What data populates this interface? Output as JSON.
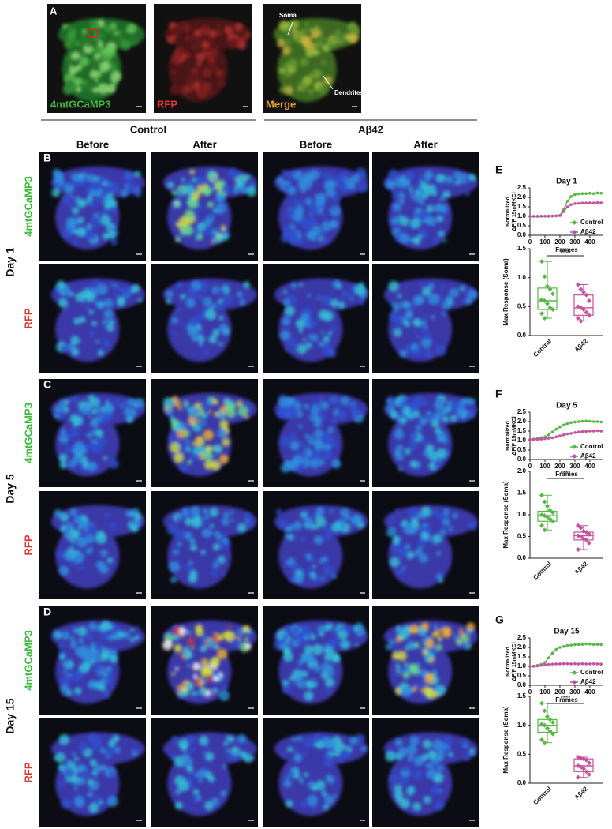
{
  "panel_a": {
    "label": "A",
    "channels": [
      "4mtGCaMP3",
      "RFP",
      "Merge"
    ],
    "annotations": [
      "Soma",
      "Dendrites"
    ]
  },
  "groups": [
    "Control",
    "Aβ42"
  ],
  "timepoints": [
    "Before",
    "After",
    "Before",
    "After"
  ],
  "rows": [
    {
      "label": "B",
      "day": "Day 1",
      "channels": [
        "4mtGCaMP3",
        "RFP"
      ]
    },
    {
      "label": "C",
      "day": "Day 5",
      "channels": [
        "4mtGCaMP3",
        "RFP"
      ]
    },
    {
      "label": "D",
      "day": "Day 15",
      "channels": [
        "4mtGCaMP3",
        "RFP"
      ]
    }
  ],
  "chart_data": [
    {
      "type": "line",
      "panel": "E",
      "title": "Day 1",
      "ylabel": [
        "Normalized",
        "ΔF/F 15mMKCl"
      ],
      "xlabel": "Frames",
      "x": [
        0,
        25,
        50,
        75,
        100,
        125,
        150,
        175,
        200,
        225,
        250,
        275,
        300,
        325,
        350,
        375,
        400,
        425,
        450,
        475
      ],
      "xlim": [
        0,
        490
      ],
      "xticks": [
        0,
        100,
        200,
        300,
        400
      ],
      "ylim": [
        0,
        2.5
      ],
      "yticks": [
        {
          "value": 0,
          "label": "0.0"
        },
        0.5,
        {
          "value": 1,
          "label": "1.0"
        },
        1.5,
        {
          "value": 2,
          "label": "2.0"
        },
        2.5
      ],
      "series": [
        {
          "name": "Control",
          "color": "#58b947",
          "values": [
            1.0,
            1.0,
            1.0,
            1.01,
            1.0,
            1.02,
            1.01,
            1.03,
            1.05,
            1.35,
            1.8,
            2.05,
            2.15,
            2.18,
            2.2,
            2.2,
            2.22,
            2.2,
            2.23,
            2.22
          ]
        },
        {
          "name": "Aβ42",
          "color": "#c6519e",
          "values": [
            1.0,
            1.0,
            1.0,
            1.0,
            1.01,
            1.0,
            1.02,
            1.02,
            1.04,
            1.25,
            1.5,
            1.62,
            1.67,
            1.68,
            1.7,
            1.7,
            1.71,
            1.7,
            1.72,
            1.71
          ]
        }
      ]
    },
    {
      "type": "box",
      "ylabel": "Max Response (Soma)",
      "categories": [
        "Control",
        "Aβ42"
      ],
      "colors": [
        "#58b947",
        "#c6519e"
      ],
      "annotation": "n.s.",
      "ylim": [
        0,
        1.5
      ],
      "yticks": [
        {
          "value": 0,
          "label": "0.0"
        },
        0.5,
        {
          "value": 1,
          "label": "1.0"
        },
        1.5
      ],
      "boxes": [
        {
          "min": 0.3,
          "q1": 0.45,
          "median": 0.6,
          "q3": 0.82,
          "max": 1.28,
          "points": [
            1.28,
            1.02,
            0.85,
            0.8,
            0.72,
            0.62,
            0.6,
            0.55,
            0.48,
            0.45,
            0.38,
            0.3
          ]
        },
        {
          "min": 0.25,
          "q1": 0.35,
          "median": 0.48,
          "q3": 0.7,
          "max": 0.88,
          "points": [
            0.88,
            0.8,
            0.75,
            0.7,
            0.6,
            0.5,
            0.48,
            0.45,
            0.4,
            0.35,
            0.3,
            0.25
          ]
        }
      ]
    },
    {
      "type": "line",
      "panel": "F",
      "title": "Day 5",
      "ylabel": [
        "Normalized",
        "ΔF/F 15mMKCl"
      ],
      "xlabel": "Frames",
      "x": [
        0,
        25,
        50,
        75,
        100,
        125,
        150,
        175,
        200,
        225,
        250,
        275,
        300,
        325,
        350,
        375,
        400,
        425,
        450,
        475
      ],
      "xlim": [
        0,
        490
      ],
      "xticks": [
        0,
        100,
        200,
        300,
        400
      ],
      "ylim": [
        0,
        2.5
      ],
      "yticks": [
        {
          "value": 0,
          "label": "0.0"
        },
        0.5,
        {
          "value": 1,
          "label": "1.0"
        },
        1.5,
        {
          "value": 2,
          "label": "2.0"
        },
        2.5
      ],
      "series": [
        {
          "name": "Control",
          "color": "#58b947",
          "values": [
            1.05,
            1.08,
            1.1,
            1.15,
            1.2,
            1.3,
            1.45,
            1.6,
            1.72,
            1.82,
            1.9,
            1.95,
            1.98,
            2.0,
            2.02,
            2.03,
            2.02,
            2.0,
            2.0,
            1.98
          ]
        },
        {
          "name": "Aβ42",
          "color": "#c6519e",
          "values": [
            1.05,
            1.05,
            1.07,
            1.08,
            1.1,
            1.12,
            1.15,
            1.2,
            1.25,
            1.3,
            1.35,
            1.38,
            1.42,
            1.45,
            1.47,
            1.48,
            1.5,
            1.5,
            1.52,
            1.5
          ]
        }
      ]
    },
    {
      "type": "box",
      "ylabel": "Max Response (Soma)",
      "categories": [
        "Control",
        "Aβ42"
      ],
      "colors": [
        "#58b947",
        "#c6519e"
      ],
      "annotation": "****",
      "ylim": [
        0,
        2
      ],
      "yticks": [
        {
          "value": 0,
          "label": "0.0"
        },
        0.5,
        {
          "value": 1,
          "label": "1.0"
        },
        1.5,
        {
          "value": 2,
          "label": "2.0"
        }
      ],
      "boxes": [
        {
          "min": 0.65,
          "q1": 0.85,
          "median": 0.98,
          "q3": 1.08,
          "max": 1.45,
          "points": [
            1.45,
            1.3,
            1.2,
            1.1,
            1.05,
            1.0,
            0.98,
            0.95,
            0.9,
            0.85,
            0.75,
            0.65
          ]
        },
        {
          "min": 0.2,
          "q1": 0.42,
          "median": 0.52,
          "q3": 0.6,
          "max": 0.75,
          "points": [
            0.75,
            0.7,
            0.62,
            0.6,
            0.55,
            0.52,
            0.5,
            0.45,
            0.42,
            0.35,
            0.2
          ]
        }
      ]
    },
    {
      "type": "line",
      "panel": "G",
      "title": "Day 15",
      "ylabel": [
        "Normalized",
        "ΔF/F 15mMKCl"
      ],
      "xlabel": "Frames",
      "x": [
        0,
        25,
        50,
        75,
        100,
        125,
        150,
        175,
        200,
        225,
        250,
        275,
        300,
        325,
        350,
        375,
        400,
        425,
        450,
        475
      ],
      "xlim": [
        0,
        490
      ],
      "xticks": [
        0,
        100,
        200,
        300,
        400
      ],
      "ylim": [
        0,
        2.5
      ],
      "yticks": [
        {
          "value": 0,
          "label": "0.0"
        },
        0.5,
        {
          "value": 1,
          "label": "1.0"
        },
        1.5,
        {
          "value": 2,
          "label": "2.0"
        },
        2.5
      ],
      "series": [
        {
          "name": "Control",
          "color": "#58b947",
          "values": [
            1.0,
            1.02,
            1.05,
            1.1,
            1.2,
            1.45,
            1.7,
            1.9,
            2.0,
            2.05,
            2.1,
            2.12,
            2.15,
            2.15,
            2.16,
            2.18,
            2.17,
            2.15,
            2.16,
            2.15
          ]
        },
        {
          "name": "Aβ42",
          "color": "#c6519e",
          "values": [
            1.0,
            1.0,
            1.02,
            1.05,
            1.08,
            1.1,
            1.12,
            1.13,
            1.13,
            1.14,
            1.14,
            1.13,
            1.14,
            1.13,
            1.14,
            1.13,
            1.13,
            1.14,
            1.13,
            1.12
          ]
        }
      ]
    },
    {
      "type": "box",
      "ylabel": "Max Response (Soma)",
      "categories": [
        "Control",
        "Aβ42"
      ],
      "colors": [
        "#58b947",
        "#c6519e"
      ],
      "annotation": "****",
      "ylim": [
        0,
        1.5
      ],
      "yticks": [
        {
          "value": 0,
          "label": "0.0"
        },
        0.5,
        {
          "value": 1,
          "label": "1.0"
        },
        1.5
      ],
      "boxes": [
        {
          "min": 0.7,
          "q1": 0.88,
          "median": 1.0,
          "q3": 1.1,
          "max": 1.38,
          "points": [
            1.38,
            1.25,
            1.15,
            1.1,
            1.05,
            1.02,
            1.0,
            0.95,
            0.9,
            0.85,
            0.75,
            0.7
          ]
        },
        {
          "min": 0.1,
          "q1": 0.2,
          "median": 0.3,
          "q3": 0.42,
          "max": 0.45,
          "points": [
            0.45,
            0.43,
            0.42,
            0.4,
            0.35,
            0.3,
            0.28,
            0.25,
            0.2,
            0.15,
            0.1
          ]
        }
      ]
    }
  ]
}
